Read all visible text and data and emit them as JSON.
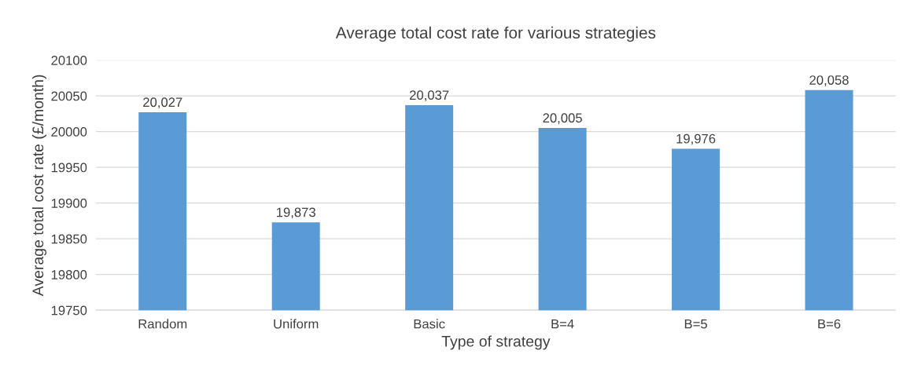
{
  "chart_data": {
    "type": "bar",
    "title": "Average total cost rate for various strategies",
    "xlabel": "Type of strategy",
    "ylabel": "Average total cost rate (£/month)",
    "categories": [
      "Random",
      "Uniform",
      "Basic",
      "B=4",
      "B=5",
      "B=6"
    ],
    "values": [
      20027,
      19873,
      20037,
      20005,
      19976,
      20058
    ],
    "value_labels": [
      "20,027",
      "19,873",
      "20,037",
      "20,005",
      "19,976",
      "20,058"
    ],
    "color": "#5b9bd5",
    "ylim": [
      19750,
      20100
    ],
    "yticks": [
      19750,
      19800,
      19850,
      19900,
      19950,
      20000,
      20050,
      20100
    ],
    "grid": "y",
    "legend": false
  }
}
